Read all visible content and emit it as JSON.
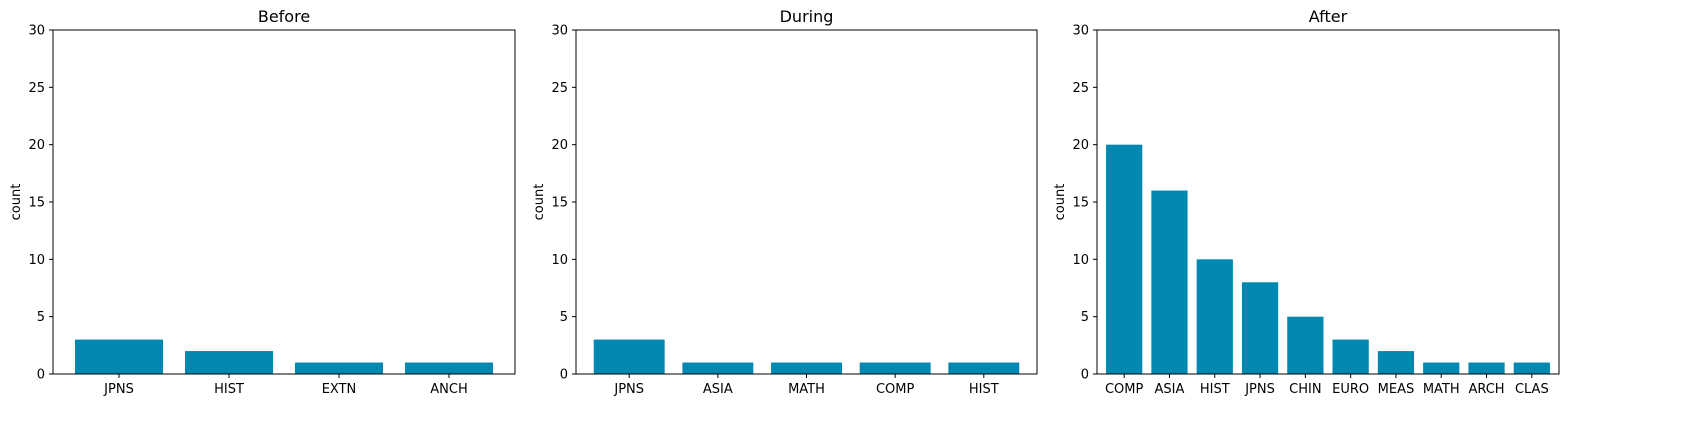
{
  "chart_data": [
    {
      "type": "bar",
      "title": "Before",
      "xlabel": "",
      "ylabel": "count",
      "ylim": [
        0,
        30
      ],
      "yticks": [
        0,
        5,
        10,
        15,
        20,
        25,
        30
      ],
      "bar_color": "#0088b0",
      "categories": [
        "JPNS",
        "HIST",
        "EXTN",
        "ANCH"
      ],
      "values": [
        3,
        2,
        1,
        1
      ]
    },
    {
      "type": "bar",
      "title": "During",
      "xlabel": "",
      "ylabel": "count",
      "ylim": [
        0,
        30
      ],
      "yticks": [
        0,
        5,
        10,
        15,
        20,
        25,
        30
      ],
      "bar_color": "#0088b0",
      "categories": [
        "JPNS",
        "ASIA",
        "MATH",
        "COMP",
        "HIST"
      ],
      "values": [
        3,
        1,
        1,
        1,
        1
      ]
    },
    {
      "type": "bar",
      "title": "After",
      "xlabel": "",
      "ylabel": "count",
      "ylim": [
        0,
        30
      ],
      "yticks": [
        0,
        5,
        10,
        15,
        20,
        25,
        30
      ],
      "bar_color": "#0088b0",
      "categories": [
        "COMP",
        "ASIA",
        "HIST",
        "JPNS",
        "CHIN",
        "EURO",
        "MEAS",
        "MATH",
        "ARCH",
        "CLAS"
      ],
      "values": [
        20,
        16,
        10,
        8,
        5,
        3,
        2,
        1,
        1,
        1
      ]
    }
  ]
}
